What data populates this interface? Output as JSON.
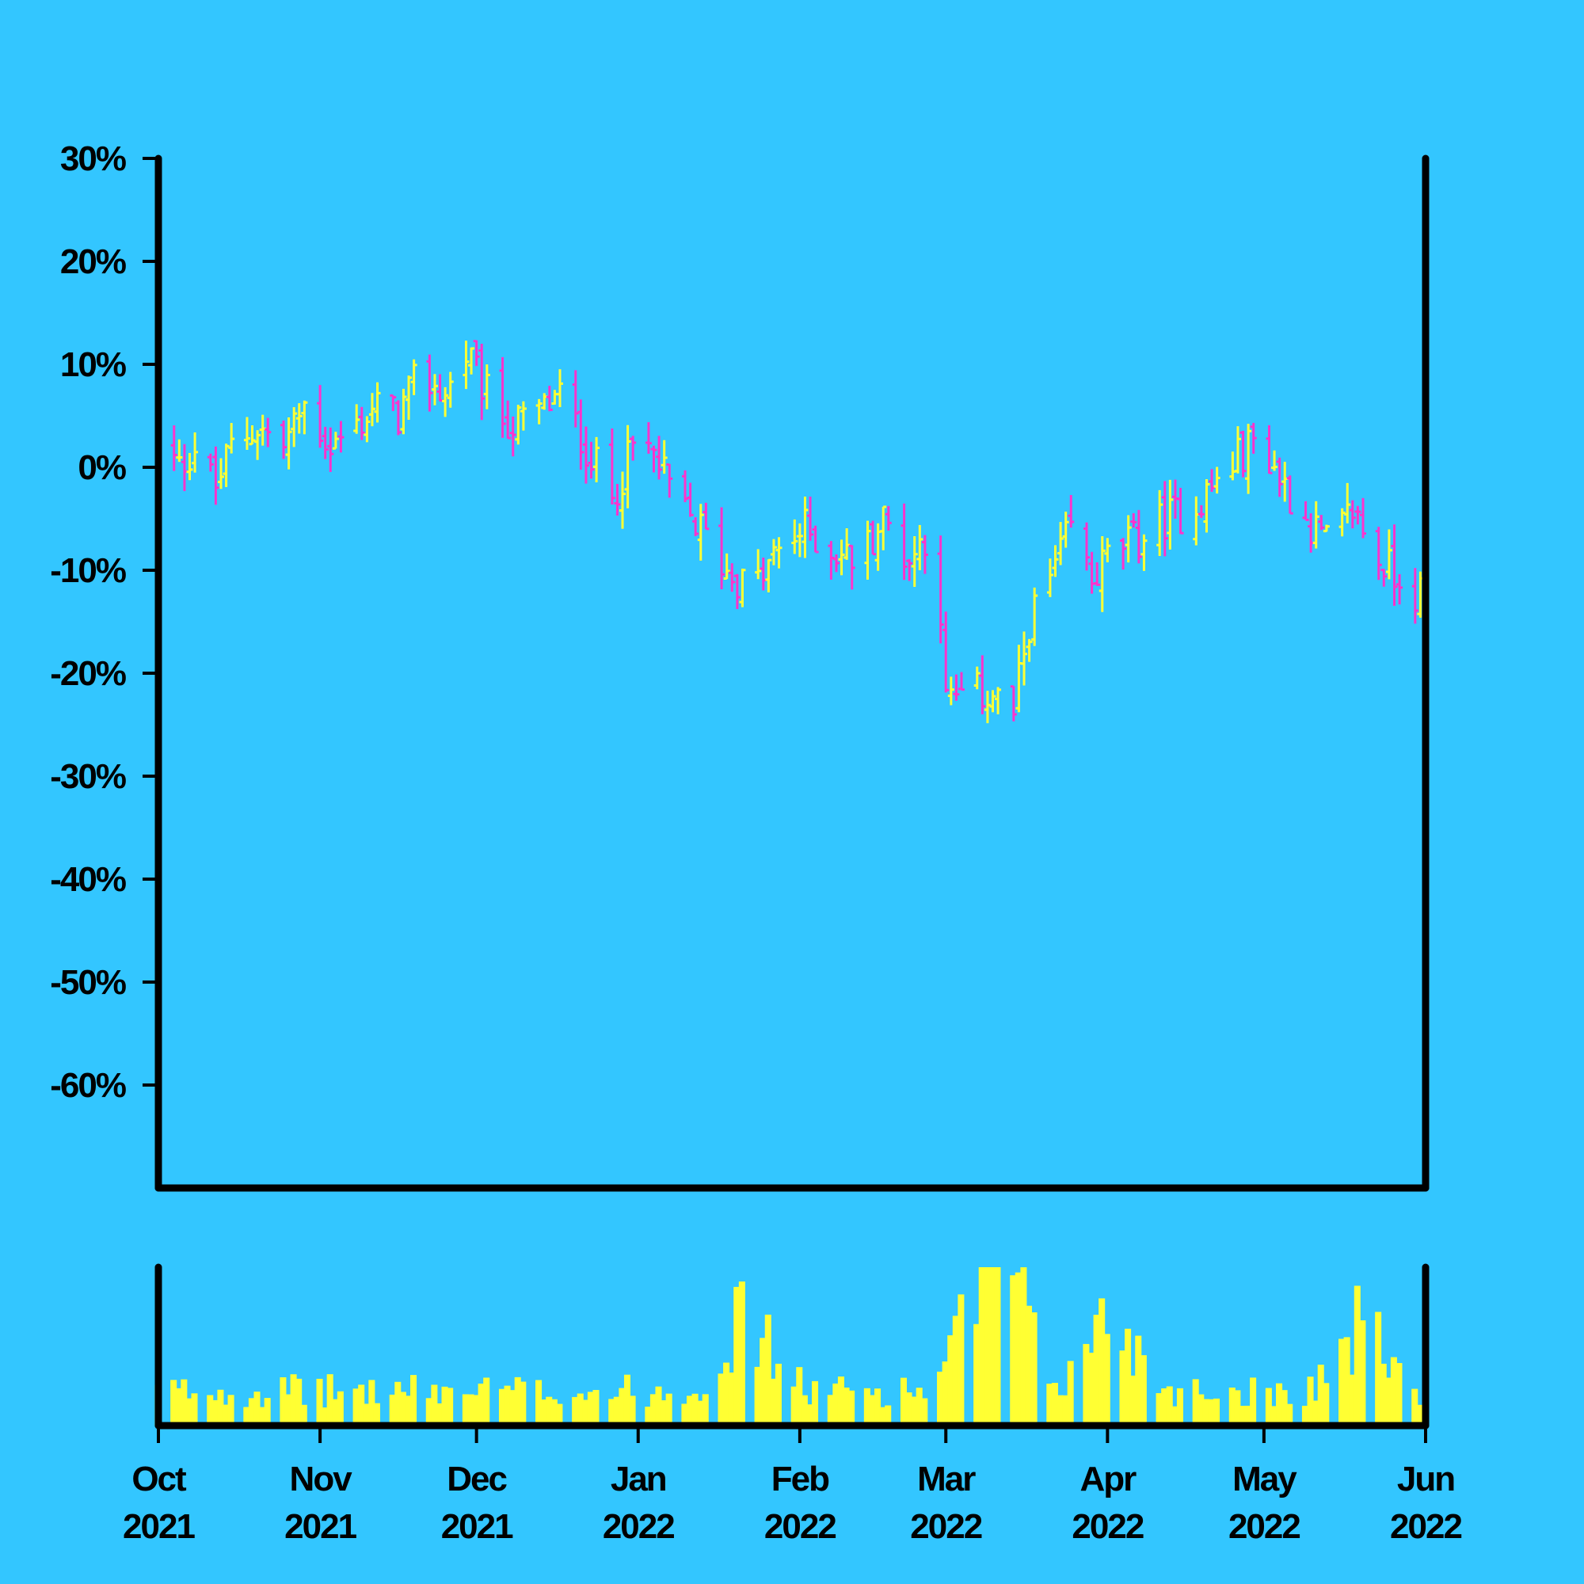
{
  "colors": {
    "background": "#33c6ff",
    "axis": "#000000",
    "up": "#ffff33",
    "down": "#ff33cc",
    "volume": "#ffff33"
  },
  "chart_data": {
    "type": "ohlc",
    "title": "",
    "xlabel": "",
    "ylabel": "",
    "y_axis": {
      "format": "percent",
      "ylim": [
        -70,
        30
      ],
      "ticks": [
        30,
        20,
        10,
        0,
        -10,
        -20,
        -30,
        -40,
        -50,
        -60
      ],
      "tick_labels": [
        "30%",
        "20%",
        "10%",
        "0%",
        "-10%",
        "-20%",
        "-30%",
        "-40%",
        "-50%",
        "-60%"
      ]
    },
    "x_axis": {
      "range": [
        "2021-10-01",
        "2022-06-01"
      ],
      "ticks": [
        {
          "date": "2021-10-01",
          "month": "Oct",
          "year": "2021"
        },
        {
          "date": "2021-11-01",
          "month": "Nov",
          "year": "2021"
        },
        {
          "date": "2021-12-01",
          "month": "Dec",
          "year": "2021"
        },
        {
          "date": "2022-01-01",
          "month": "Jan",
          "year": "2022"
        },
        {
          "date": "2022-02-01",
          "month": "Feb",
          "year": "2022"
        },
        {
          "date": "2022-03-01",
          "month": "Mar",
          "year": "2022"
        },
        {
          "date": "2022-04-01",
          "month": "Apr",
          "year": "2022"
        },
        {
          "date": "2022-05-01",
          "month": "May",
          "year": "2022"
        },
        {
          "date": "2022-06-01",
          "month": "Jun",
          "year": "2022"
        }
      ]
    },
    "grid": false,
    "legend": "none",
    "close_path": [
      [
        "2021-10-01",
        2
      ],
      [
        "2021-10-05",
        0
      ],
      [
        "2021-10-08",
        2
      ],
      [
        "2021-10-12",
        -2
      ],
      [
        "2021-10-15",
        2
      ],
      [
        "2021-10-20",
        4
      ],
      [
        "2021-10-25",
        2
      ],
      [
        "2021-10-29",
        6
      ],
      [
        "2021-11-03",
        2
      ],
      [
        "2021-11-08",
        4
      ],
      [
        "2021-11-12",
        6
      ],
      [
        "2021-11-16",
        5
      ],
      [
        "2021-11-20",
        9
      ],
      [
        "2021-11-25",
        7
      ],
      [
        "2021-11-29",
        11
      ],
      [
        "2021-12-04",
        6
      ],
      [
        "2021-12-08",
        4
      ],
      [
        "2021-12-12",
        5
      ],
      [
        "2021-12-17",
        7
      ],
      [
        "2021-12-22",
        2
      ],
      [
        "2021-12-27",
        -3
      ],
      [
        "2022-01-01",
        3
      ],
      [
        "2022-01-04",
        1
      ],
      [
        "2022-01-09",
        -4
      ],
      [
        "2022-01-13",
        -6
      ],
      [
        "2022-01-18",
        -10
      ],
      [
        "2022-01-23",
        -12
      ],
      [
        "2022-01-28",
        -8
      ],
      [
        "2022-02-02",
        -6
      ],
      [
        "2022-02-07",
        -8
      ],
      [
        "2022-02-12",
        -9
      ],
      [
        "2022-02-17",
        -5
      ],
      [
        "2022-02-22",
        -9
      ],
      [
        "2022-02-27",
        -5
      ],
      [
        "2022-03-01",
        -23
      ],
      [
        "2022-03-05",
        -22
      ],
      [
        "2022-03-10",
        -22
      ],
      [
        "2022-03-14",
        -24
      ],
      [
        "2022-03-17",
        -15
      ],
      [
        "2022-03-21",
        -11
      ],
      [
        "2022-03-25",
        -6
      ],
      [
        "2022-03-29",
        -11
      ],
      [
        "2022-04-02",
        -8
      ],
      [
        "2022-04-07",
        -7
      ],
      [
        "2022-04-12",
        -5
      ],
      [
        "2022-04-17",
        -4
      ],
      [
        "2022-04-21",
        -2
      ],
      [
        "2022-04-26",
        1
      ],
      [
        "2022-04-30",
        3
      ],
      [
        "2022-05-04",
        -1
      ],
      [
        "2022-05-09",
        -5
      ],
      [
        "2022-05-14",
        -8
      ],
      [
        "2022-05-18",
        -4
      ],
      [
        "2022-05-23",
        -9
      ],
      [
        "2022-05-28",
        -11
      ],
      [
        "2022-06-01",
        -13
      ]
    ],
    "volume": {
      "ylim": [
        0,
        100
      ],
      "baseline": 25,
      "peaks": [
        [
          "2022-01-22",
          75
        ],
        [
          "2022-03-09",
          85
        ],
        [
          "2022-03-12",
          82
        ],
        [
          "2022-04-02",
          78
        ],
        [
          "2022-05-20",
          70
        ]
      ]
    }
  }
}
